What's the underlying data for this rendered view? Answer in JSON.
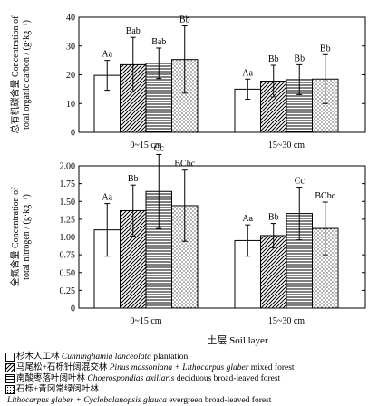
{
  "chart_data": [
    {
      "type": "bar",
      "ylabel_cn": "总有机碳含量",
      "ylabel_en": "Concentration of",
      "ylabel_en2": "total organic carbon / (g·kg⁻¹)",
      "ylim": [
        0,
        40
      ],
      "yticks": [
        "0",
        "10",
        "20",
        "30",
        "40"
      ],
      "categories": [
        "0~15 cm",
        "15~30 cm"
      ],
      "series": [
        {
          "pattern": "blank",
          "values": [
            19.8,
            15.0
          ],
          "errors": [
            5.2,
            3.5
          ],
          "labels": [
            "Aa",
            "Aa"
          ]
        },
        {
          "pattern": "diag",
          "values": [
            23.5,
            17.8
          ],
          "errors": [
            9.5,
            5.5
          ],
          "labels": [
            "Bab",
            "Bb"
          ]
        },
        {
          "pattern": "horiz",
          "values": [
            24.0,
            18.3
          ],
          "errors": [
            5.3,
            5.2
          ],
          "labels": [
            "Bab",
            "Bb"
          ]
        },
        {
          "pattern": "dots",
          "values": [
            25.3,
            18.5
          ],
          "errors": [
            11.7,
            8.5
          ],
          "labels": [
            "Bb",
            "Bb"
          ]
        }
      ]
    },
    {
      "type": "bar",
      "ylabel_cn": "全氮含量",
      "ylabel_en": "Concentration of",
      "ylabel_en2": "total nitrogen / (g·kg⁻¹)",
      "ylim": [
        0,
        2.0
      ],
      "yticks": [
        "0",
        "0.25",
        "0.50",
        "0.75",
        "1.00",
        "1.25",
        "1.50",
        "1.75",
        "2.00"
      ],
      "categories": [
        "0~15 cm",
        "15~30 cm"
      ],
      "series": [
        {
          "pattern": "blank",
          "values": [
            1.1,
            0.95
          ],
          "errors": [
            0.37,
            0.22
          ],
          "labels": [
            "Aa",
            "Aa"
          ]
        },
        {
          "pattern": "diag",
          "values": [
            1.37,
            1.02
          ],
          "errors": [
            0.36,
            0.17
          ],
          "labels": [
            "Bb",
            "Bb"
          ]
        },
        {
          "pattern": "horiz",
          "values": [
            1.64,
            1.33
          ],
          "errors": [
            0.52,
            0.37
          ],
          "labels": [
            "Cc",
            "Cc"
          ]
        },
        {
          "pattern": "dots",
          "values": [
            1.44,
            1.12
          ],
          "errors": [
            0.5,
            0.37
          ],
          "labels": [
            "BCbc",
            "BCbc"
          ]
        }
      ]
    }
  ],
  "xlabel": "土层 Soil layer",
  "legend": [
    {
      "pattern": "blank",
      "cn": "杉木人工林 ",
      "sci": "Cunninghamia lanceolata",
      "en": " plantation"
    },
    {
      "pattern": "diag",
      "cn": "马尾松+石栎针阔混交林 ",
      "sci": "Pinus massoniana + Lithocarpus glaber",
      "en": " mixed forest"
    },
    {
      "pattern": "horiz",
      "cn": "南酸枣落叶阔叶林 ",
      "sci": "Choerospondias axillaris",
      "en": " deciduous broad-leaved forest"
    },
    {
      "pattern": "dots",
      "cn": "石栎+青冈常绿阔叶林",
      "sci": "",
      "en": ""
    }
  ],
  "legend_continuation": {
    "sci": "Lithocarpus glaber + Cyclobalanopsis glauca",
    "en": " evergreen broad-leaved forest"
  }
}
